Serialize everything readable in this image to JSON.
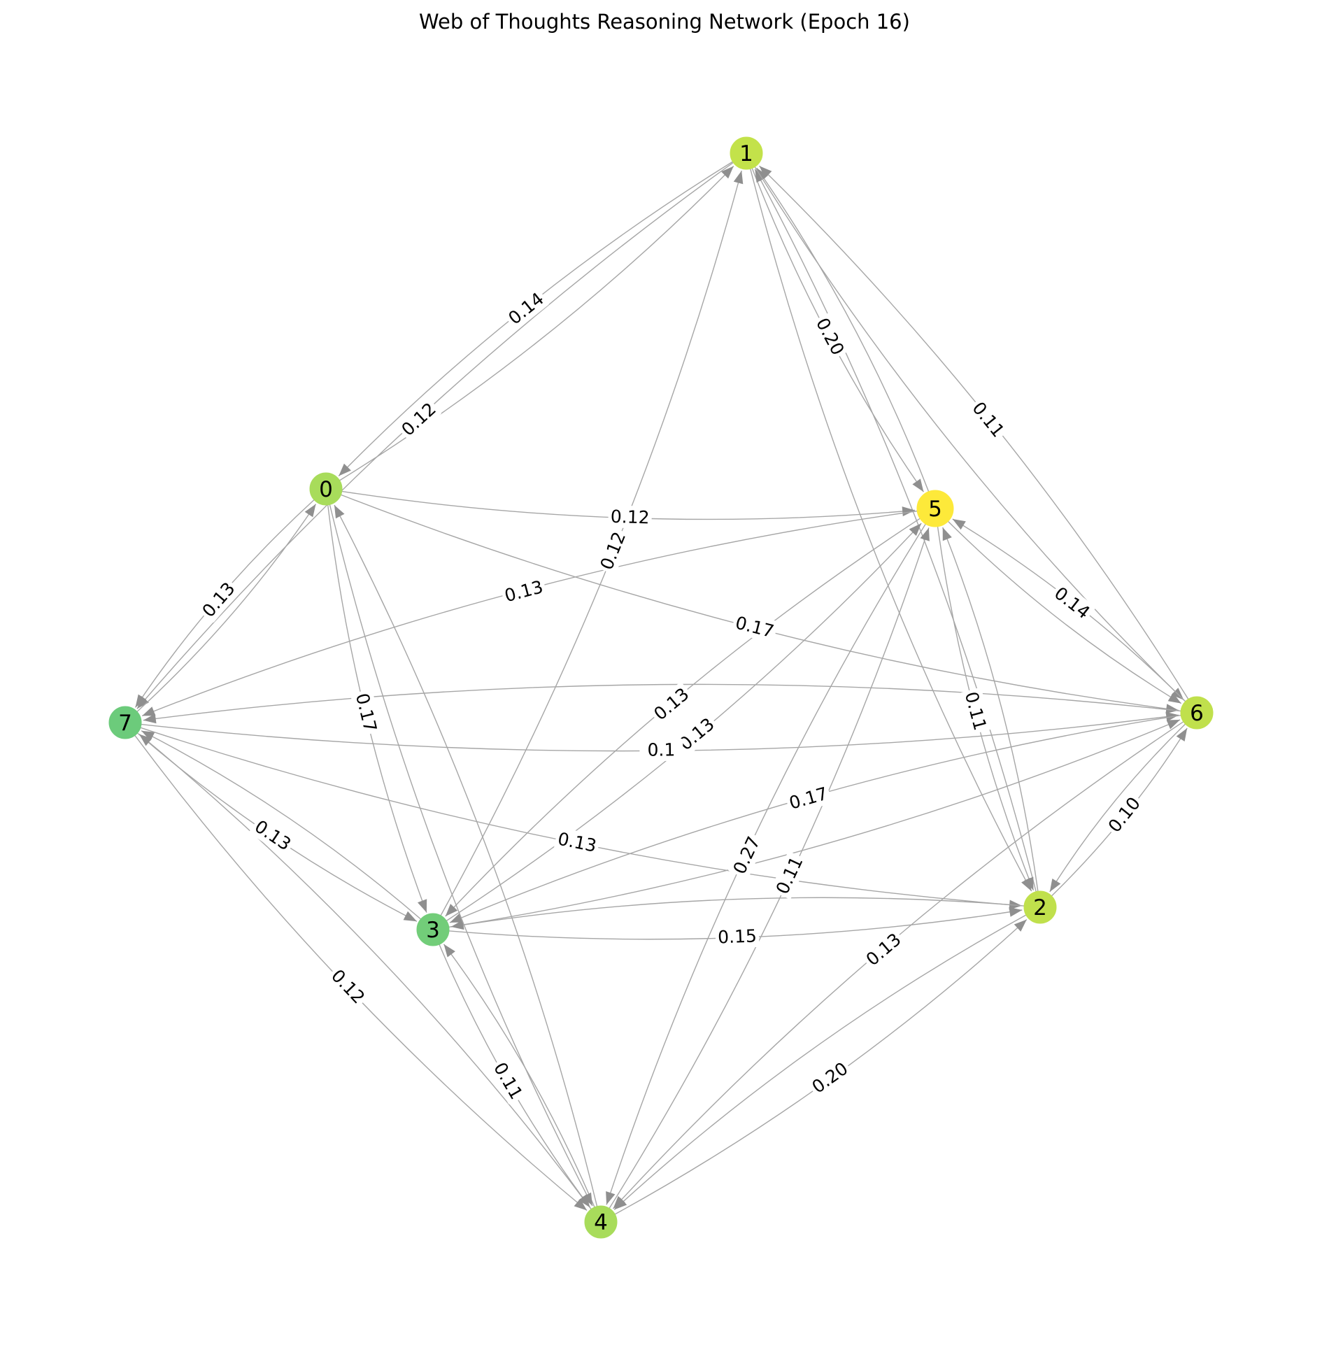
{
  "title": "Web of Thoughts Reasoning Network (Epoch 16)",
  "colors": {
    "edge": "#a6a6a6",
    "arrow": "#8f8f8f",
    "label_bg": "#ffffff"
  },
  "nodes": [
    {
      "id": "0",
      "label": "0",
      "color": "#a8dc5b"
    },
    {
      "id": "1",
      "label": "1",
      "color": "#c3e24a"
    },
    {
      "id": "2",
      "label": "2",
      "color": "#c0e04c"
    },
    {
      "id": "3",
      "label": "3",
      "color": "#72cd79"
    },
    {
      "id": "4",
      "label": "4",
      "color": "#a8dc5b"
    },
    {
      "id": "5",
      "label": "5",
      "color": "#fde93a"
    },
    {
      "id": "6",
      "label": "6",
      "color": "#c0e04c"
    },
    {
      "id": "7",
      "label": "7",
      "color": "#6ccb7b"
    }
  ],
  "edges": [
    {
      "source": "1",
      "target": "0",
      "label": "0.14"
    },
    {
      "source": "0",
      "target": "1",
      "label": ""
    },
    {
      "source": "1",
      "target": "7",
      "label": "0.12"
    },
    {
      "source": "3",
      "target": "1",
      "label": "0.12"
    },
    {
      "source": "1",
      "target": "5",
      "label": "0.20"
    },
    {
      "source": "5",
      "target": "1",
      "label": ""
    },
    {
      "source": "2",
      "target": "1",
      "label": ""
    },
    {
      "source": "1",
      "target": "2",
      "label": ""
    },
    {
      "source": "6",
      "target": "1",
      "label": "0.11"
    },
    {
      "source": "1",
      "target": "6",
      "label": ""
    },
    {
      "source": "0",
      "target": "5",
      "label": "0.12"
    },
    {
      "source": "0",
      "target": "7",
      "label": "0.13"
    },
    {
      "source": "7",
      "target": "0",
      "label": ""
    },
    {
      "source": "0",
      "target": "3",
      "label": "0.17"
    },
    {
      "source": "4",
      "target": "0",
      "label": ""
    },
    {
      "source": "0",
      "target": "6",
      "label": "0.17"
    },
    {
      "source": "5",
      "target": "7",
      "label": "0.13"
    },
    {
      "source": "5",
      "target": "3",
      "label": "0.13"
    },
    {
      "source": "3",
      "target": "5",
      "label": "0.13"
    },
    {
      "source": "5",
      "target": "4",
      "label": "0.27"
    },
    {
      "source": "4",
      "target": "5",
      "label": "0.11"
    },
    {
      "source": "5",
      "target": "2",
      "label": "0.11"
    },
    {
      "source": "2",
      "target": "5",
      "label": ""
    },
    {
      "source": "6",
      "target": "5",
      "label": "0.14"
    },
    {
      "source": "5",
      "target": "6",
      "label": ""
    },
    {
      "source": "7",
      "target": "6",
      "label": "0.1"
    },
    {
      "source": "6",
      "target": "7",
      "label": ""
    },
    {
      "source": "7",
      "target": "3",
      "label": "0.13"
    },
    {
      "source": "3",
      "target": "7",
      "label": ""
    },
    {
      "source": "7",
      "target": "2",
      "label": "0.13"
    },
    {
      "source": "7",
      "target": "4",
      "label": "0.12"
    },
    {
      "source": "4",
      "target": "7",
      "label": ""
    },
    {
      "source": "6",
      "target": "3",
      "label": "0.17"
    },
    {
      "source": "3",
      "target": "6",
      "label": ""
    },
    {
      "source": "3",
      "target": "2",
      "label": "0.15"
    },
    {
      "source": "2",
      "target": "3",
      "label": ""
    },
    {
      "source": "3",
      "target": "4",
      "label": "0.11"
    },
    {
      "source": "4",
      "target": "3",
      "label": ""
    },
    {
      "source": "0",
      "target": "4",
      "label": ""
    },
    {
      "source": "4",
      "target": "2",
      "label": "0.20"
    },
    {
      "source": "2",
      "target": "4",
      "label": ""
    },
    {
      "source": "6",
      "target": "4",
      "label": "0.13"
    },
    {
      "source": "2",
      "target": "6",
      "label": "0.10"
    },
    {
      "source": "6",
      "target": "2",
      "label": ""
    }
  ]
}
